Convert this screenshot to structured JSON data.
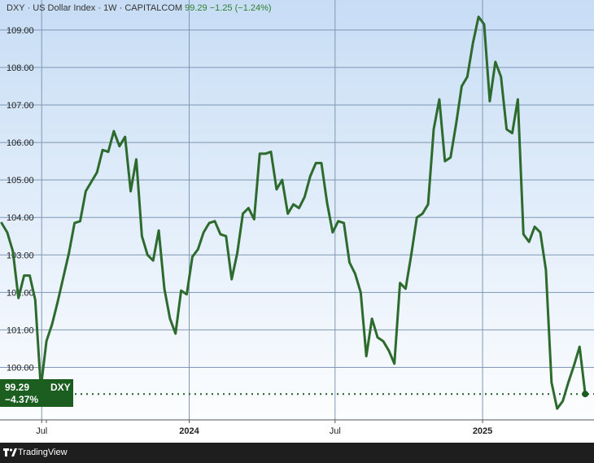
{
  "header": {
    "symbol": "DXY",
    "sep1": "·",
    "name": "US Dollar Index",
    "sep2": "·",
    "interval": "1W",
    "sep3": "·",
    "source": "CAPITALCOM",
    "last": "99.29",
    "change": "−1.25",
    "change_pct": "(−1.24%)"
  },
  "badge": {
    "price": "99.29",
    "ticker": "DXY",
    "pct": "−4.37%"
  },
  "footer": {
    "brand": "TradingView"
  },
  "colors": {
    "line": "#2d6a2d",
    "badge": "#1b5e20",
    "bg_top": "#c7ddf5",
    "bg_bottom": "#ffffff"
  },
  "chart_data": {
    "type": "line",
    "title": "",
    "xlabel": "",
    "ylabel": "",
    "ylim": [
      98.6,
      109.8
    ],
    "y_ticks": [
      "109.00",
      "108.00",
      "107.00",
      "106.00",
      "105.00",
      "104.00",
      "103.00",
      "102.00",
      "101.00",
      "100.00"
    ],
    "y_tick_values": [
      109,
      108,
      107,
      106,
      105,
      104,
      103,
      102,
      101,
      100
    ],
    "x_tick_labels": [
      {
        "label": "Jul",
        "date": "2023-07-01"
      },
      {
        "label": "2024",
        "date": "2024-01-01"
      },
      {
        "label": "Jul",
        "date": "2024-07-01"
      },
      {
        "label": "2025",
        "date": "2025-01-01"
      }
    ],
    "x_range": [
      "2023-05-10",
      "2025-05-20"
    ],
    "last_value": 99.29,
    "series": [
      {
        "points": [
          [
            "2023-05-12",
            103.85
          ],
          [
            "2023-05-19",
            103.6
          ],
          [
            "2023-05-26",
            103.1
          ],
          [
            "2023-06-02",
            101.85
          ],
          [
            "2023-06-09",
            102.45
          ],
          [
            "2023-06-16",
            102.45
          ],
          [
            "2023-06-23",
            101.8
          ],
          [
            "2023-06-30",
            99.45
          ],
          [
            "2023-07-07",
            100.7
          ],
          [
            "2023-07-14",
            101.15
          ],
          [
            "2023-07-21",
            101.75
          ],
          [
            "2023-07-28",
            102.4
          ],
          [
            "2023-08-04",
            103.05
          ],
          [
            "2023-08-11",
            103.85
          ],
          [
            "2023-08-18",
            103.9
          ],
          [
            "2023-08-25",
            104.7
          ],
          [
            "2023-09-01",
            104.95
          ],
          [
            "2023-09-08",
            105.2
          ],
          [
            "2023-09-15",
            105.8
          ],
          [
            "2023-09-22",
            105.75
          ],
          [
            "2023-09-29",
            106.3
          ],
          [
            "2023-10-06",
            105.9
          ],
          [
            "2023-10-13",
            106.15
          ],
          [
            "2023-10-20",
            104.7
          ],
          [
            "2023-10-27",
            105.55
          ],
          [
            "2023-11-03",
            103.5
          ],
          [
            "2023-11-10",
            103.0
          ],
          [
            "2023-11-17",
            102.85
          ],
          [
            "2023-11-24",
            103.65
          ],
          [
            "2023-12-01",
            102.1
          ],
          [
            "2023-12-08",
            101.3
          ],
          [
            "2023-12-15",
            100.9
          ],
          [
            "2023-12-22",
            102.05
          ],
          [
            "2023-12-29",
            101.95
          ],
          [
            "2024-01-05",
            102.95
          ],
          [
            "2024-01-12",
            103.15
          ],
          [
            "2024-01-19",
            103.6
          ],
          [
            "2024-01-26",
            103.85
          ],
          [
            "2024-02-02",
            103.9
          ],
          [
            "2024-02-09",
            103.55
          ],
          [
            "2024-02-16",
            103.5
          ],
          [
            "2024-02-23",
            102.35
          ],
          [
            "2024-03-01",
            103.05
          ],
          [
            "2024-03-08",
            104.1
          ],
          [
            "2024-03-15",
            104.25
          ],
          [
            "2024-03-22",
            103.95
          ],
          [
            "2024-03-29",
            105.7
          ],
          [
            "2024-04-05",
            105.7
          ],
          [
            "2024-04-12",
            105.75
          ],
          [
            "2024-04-19",
            104.75
          ],
          [
            "2024-04-26",
            105.0
          ],
          [
            "2024-05-03",
            104.1
          ],
          [
            "2024-05-10",
            104.35
          ],
          [
            "2024-05-17",
            104.25
          ],
          [
            "2024-05-24",
            104.55
          ],
          [
            "2024-05-31",
            105.1
          ],
          [
            "2024-06-07",
            105.45
          ],
          [
            "2024-06-14",
            105.45
          ],
          [
            "2024-06-21",
            104.4
          ],
          [
            "2024-06-28",
            103.6
          ],
          [
            "2024-07-05",
            103.9
          ],
          [
            "2024-07-12",
            103.85
          ],
          [
            "2024-07-19",
            102.8
          ],
          [
            "2024-07-26",
            102.5
          ],
          [
            "2024-08-02",
            102.0
          ],
          [
            "2024-08-09",
            100.3
          ],
          [
            "2024-08-16",
            101.3
          ],
          [
            "2024-08-23",
            100.8
          ],
          [
            "2024-08-30",
            100.7
          ],
          [
            "2024-09-06",
            100.45
          ],
          [
            "2024-09-13",
            100.1
          ],
          [
            "2024-09-20",
            102.25
          ],
          [
            "2024-09-27",
            102.1
          ],
          [
            "2024-10-04",
            103.0
          ],
          [
            "2024-10-11",
            104.0
          ],
          [
            "2024-10-18",
            104.1
          ],
          [
            "2024-10-25",
            104.35
          ],
          [
            "2024-11-01",
            106.35
          ],
          [
            "2024-11-08",
            107.15
          ],
          [
            "2024-11-15",
            105.5
          ],
          [
            "2024-11-22",
            105.6
          ],
          [
            "2024-11-29",
            106.5
          ],
          [
            "2024-12-06",
            107.5
          ],
          [
            "2024-12-13",
            107.75
          ],
          [
            "2024-12-20",
            108.65
          ],
          [
            "2024-12-27",
            109.35
          ],
          [
            "2025-01-03",
            109.15
          ],
          [
            "2025-01-10",
            107.1
          ],
          [
            "2025-01-17",
            108.15
          ],
          [
            "2025-01-24",
            107.75
          ],
          [
            "2025-01-31",
            106.35
          ],
          [
            "2025-02-07",
            106.25
          ],
          [
            "2025-02-14",
            107.15
          ],
          [
            "2025-02-21",
            103.55
          ],
          [
            "2025-02-28",
            103.35
          ],
          [
            "2025-03-07",
            103.75
          ],
          [
            "2025-03-14",
            103.6
          ],
          [
            "2025-03-21",
            102.6
          ],
          [
            "2025-03-28",
            99.6
          ],
          [
            "2025-04-04",
            98.9
          ],
          [
            "2025-04-11",
            99.1
          ],
          [
            "2025-04-18",
            99.6
          ],
          [
            "2025-04-25",
            100.05
          ],
          [
            "2025-05-02",
            100.55
          ],
          [
            "2025-05-09",
            99.29
          ]
        ]
      }
    ]
  }
}
